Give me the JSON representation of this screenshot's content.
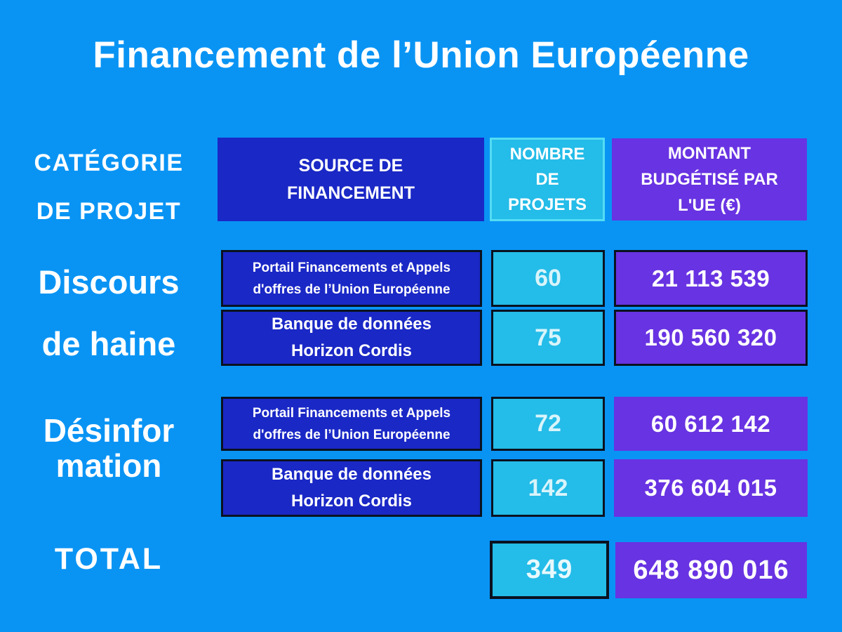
{
  "title": "Financement de l’Union Européenne",
  "header": {
    "category_line1": "CATÉGORIE",
    "category_line2": "DE PROJET",
    "source_line1": "SOURCE DE",
    "source_line2": "FINANCEMENT",
    "count_line1": "NOMBRE",
    "count_line2": "DE",
    "count_line3": "PROJETS",
    "amount_line1": "MONTANT",
    "amount_line2": "BUDGÉTISÉ PAR",
    "amount_line3": "L'UE (€)"
  },
  "groups": [
    {
      "category_line1": "Discours",
      "category_line2": "de haine",
      "rows": [
        {
          "source_line1": "Portail Financements et Appels",
          "source_line2": "d'offres de l’Union Européenne",
          "count": "60",
          "amount": "21 113 539"
        },
        {
          "source_line1": "Banque de données",
          "source_line2": "Horizon Cordis",
          "count": "75",
          "amount": "190 560 320"
        }
      ]
    },
    {
      "category_line1": "Désinfor",
      "category_line2": "mation",
      "rows": [
        {
          "source_line1": "Portail Financements et Appels",
          "source_line2": "d'offres de l’Union Européenne",
          "count": "72",
          "amount": "60 612 142"
        },
        {
          "source_line1": "Banque de données",
          "source_line2": "Horizon Cordis",
          "count": "142",
          "amount": "376 604 015"
        }
      ]
    }
  ],
  "total": {
    "label": "TOTAL",
    "count": "349",
    "amount": "648 890 016"
  },
  "colors": {
    "background": "#0994F4",
    "dark_blue_cell": "#1A28C6",
    "cyan_cell": "#24BCE8",
    "cyan_header_border": "#54DCF4",
    "purple_cell": "#6833E2",
    "dark_outline": "#0A1220",
    "text": "#FFFFFF",
    "pale_cyan_text": "#D8F4FB"
  },
  "chart_data": {
    "type": "table",
    "title": "Financement de l’Union Européenne",
    "columns": [
      "CATÉGORIE DE PROJET",
      "SOURCE DE FINANCEMENT",
      "NOMBRE DE PROJETS",
      "MONTANT BUDGÉTISÉ PAR L'UE (€)"
    ],
    "rows": [
      [
        "Discours de haine",
        "Portail Financements et Appels d'offres de l’Union Européenne",
        60,
        21113539
      ],
      [
        "Discours de haine",
        "Banque de données Horizon Cordis",
        75,
        190560320
      ],
      [
        "Désinformation",
        "Portail Financements et Appels d'offres de l’Union Européenne",
        72,
        60612142
      ],
      [
        "Désinformation",
        "Banque de données Horizon Cordis",
        142,
        376604015
      ],
      [
        "TOTAL",
        "",
        349,
        648890016
      ]
    ]
  }
}
